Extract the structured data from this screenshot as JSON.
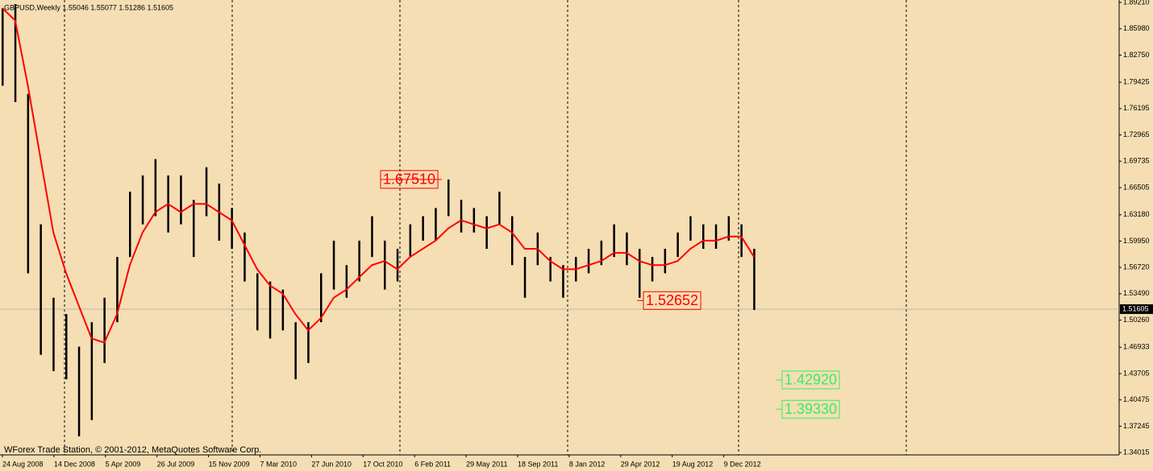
{
  "chart_data": {
    "type": "range",
    "header": "GBPUSD,Weekly  1.55046 1.55077 1.51286 1.51605",
    "footer": "WForex Trade Station, © 2001-2012, MetaQuotes Software Corp.",
    "ylim": [
      1.3373,
      1.8951
    ],
    "yticks": [
      {
        "value": 1.8921,
        "label": "1.89210"
      },
      {
        "value": 1.8598,
        "label": "1.85980"
      },
      {
        "value": 1.8275,
        "label": "1.82750"
      },
      {
        "value": 1.79425,
        "label": "1.79425"
      },
      {
        "value": 1.76195,
        "label": "1.76195"
      },
      {
        "value": 1.72965,
        "label": "1.72965"
      },
      {
        "value": 1.69735,
        "label": "1.69735"
      },
      {
        "value": 1.66505,
        "label": "1.66505"
      },
      {
        "value": 1.6318,
        "label": "1.63180"
      },
      {
        "value": 1.5995,
        "label": "1.59950"
      },
      {
        "value": 1.5672,
        "label": "1.56720"
      },
      {
        "value": 1.5349,
        "label": "1.53490"
      },
      {
        "value": 1.5026,
        "label": "1.50260"
      },
      {
        "value": 1.46933,
        "label": "1.46933"
      },
      {
        "value": 1.43705,
        "label": "1.43705"
      },
      {
        "value": 1.40475,
        "label": "1.40475"
      },
      {
        "value": 1.37245,
        "label": "1.37245"
      },
      {
        "value": 1.34015,
        "label": "1.34015"
      }
    ],
    "xlabels": [
      "24 Aug 2008",
      "14 Dec 2008",
      "5 Apr 2009",
      "26 Jul 2009",
      "15 Nov 2009",
      "7 Mar 2010",
      "27 Jun 2010",
      "17 Oct 2010",
      "6 Feb 2011",
      "29 May 2011",
      "18 Sep 2011",
      "8 Jan 2012",
      "29 Apr 2012",
      "19 Aug 2012",
      "9 Dec 2012"
    ],
    "highs": [
      1.885,
      1.89,
      1.78,
      1.62,
      1.53,
      1.51,
      1.47,
      1.5,
      1.53,
      1.58,
      1.66,
      1.68,
      1.7,
      1.68,
      1.68,
      1.65,
      1.69,
      1.67,
      1.64,
      1.61,
      1.56,
      1.55,
      1.54,
      1.5,
      1.5,
      1.56,
      1.6,
      1.57,
      1.6,
      1.63,
      1.6,
      1.59,
      1.62,
      1.63,
      1.64,
      1.675,
      1.65,
      1.64,
      1.63,
      1.66,
      1.63,
      1.58,
      1.61,
      1.58,
      1.57,
      1.58,
      1.59,
      1.6,
      1.62,
      1.61,
      1.59,
      1.58,
      1.59,
      1.61,
      1.63,
      1.62,
      1.62,
      1.63,
      1.62,
      1.59
    ],
    "lows": [
      1.79,
      1.77,
      1.56,
      1.46,
      1.44,
      1.43,
      1.36,
      1.38,
      1.45,
      1.5,
      1.58,
      1.62,
      1.63,
      1.61,
      1.62,
      1.58,
      1.63,
      1.6,
      1.59,
      1.55,
      1.49,
      1.48,
      1.49,
      1.43,
      1.45,
      1.5,
      1.54,
      1.53,
      1.55,
      1.58,
      1.54,
      1.55,
      1.58,
      1.6,
      1.6,
      1.63,
      1.61,
      1.61,
      1.59,
      1.62,
      1.57,
      1.53,
      1.57,
      1.55,
      1.53,
      1.55,
      1.56,
      1.57,
      1.58,
      1.57,
      1.53,
      1.55,
      1.56,
      1.58,
      1.6,
      1.59,
      1.59,
      1.6,
      1.58,
      1.515
    ],
    "ma": [
      1.885,
      1.87,
      1.79,
      1.7,
      1.61,
      1.56,
      1.52,
      1.48,
      1.475,
      1.51,
      1.57,
      1.61,
      1.635,
      1.645,
      1.635,
      1.645,
      1.645,
      1.635,
      1.625,
      1.595,
      1.565,
      1.545,
      1.535,
      1.51,
      1.49,
      1.505,
      1.53,
      1.54,
      1.555,
      1.57,
      1.575,
      1.565,
      1.58,
      1.59,
      1.6,
      1.615,
      1.625,
      1.62,
      1.615,
      1.62,
      1.61,
      1.59,
      1.59,
      1.575,
      1.565,
      1.565,
      1.57,
      1.575,
      1.585,
      1.585,
      1.575,
      1.57,
      1.57,
      1.575,
      1.59,
      1.6,
      1.6,
      1.605,
      1.605,
      1.58
    ],
    "bar_color": "#000000",
    "ma_color": "#ff0000",
    "current_price": {
      "value": 1.51605,
      "label": "1.51605"
    },
    "price_labels": [
      {
        "value": 1.6751,
        "label": "1.67510",
        "color": "#ff0000"
      },
      {
        "value": 1.52652,
        "label": "1.52652",
        "color": "#ff0000"
      },
      {
        "value": 1.4292,
        "label": "1.42920",
        "color": "#33ee66"
      },
      {
        "value": 1.3933,
        "label": "1.39330",
        "color": "#33ee66"
      }
    ]
  }
}
